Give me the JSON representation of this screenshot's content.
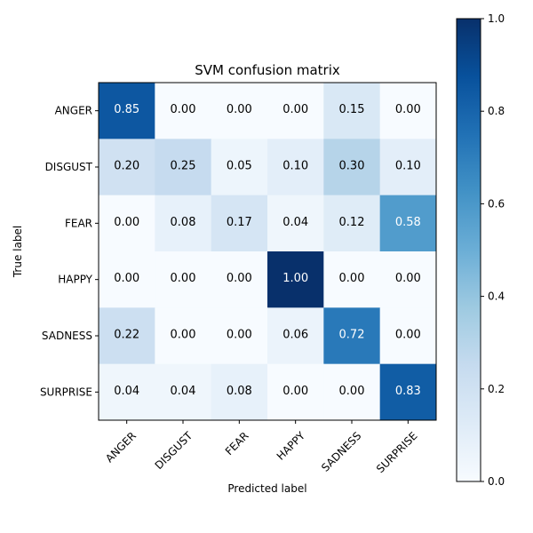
{
  "chart_data": {
    "type": "heatmap",
    "title": "SVM confusion matrix",
    "xlabel": "Predicted label",
    "ylabel": "True label",
    "x_categories": [
      "ANGER",
      "DISGUST",
      "FEAR",
      "HAPPY",
      "SADNESS",
      "SURPRISE"
    ],
    "y_categories": [
      "ANGER",
      "DISGUST",
      "FEAR",
      "HAPPY",
      "SADNESS",
      "SURPRISE"
    ],
    "values": [
      [
        0.85,
        0.0,
        0.0,
        0.0,
        0.15,
        0.0
      ],
      [
        0.2,
        0.25,
        0.05,
        0.1,
        0.3,
        0.1
      ],
      [
        0.0,
        0.08,
        0.17,
        0.04,
        0.12,
        0.58
      ],
      [
        0.0,
        0.0,
        0.0,
        1.0,
        0.0,
        0.0
      ],
      [
        0.22,
        0.0,
        0.0,
        0.06,
        0.72,
        0.0
      ],
      [
        0.04,
        0.04,
        0.08,
        0.0,
        0.0,
        0.83
      ]
    ],
    "colormap": "Blues",
    "vmin": 0.0,
    "vmax": 1.0,
    "colorbar_ticks": [
      "0.0",
      "0.2",
      "0.4",
      "0.6",
      "0.8",
      "1.0"
    ],
    "text_color_dark": "#000000",
    "text_color_light": "#ffffff"
  }
}
